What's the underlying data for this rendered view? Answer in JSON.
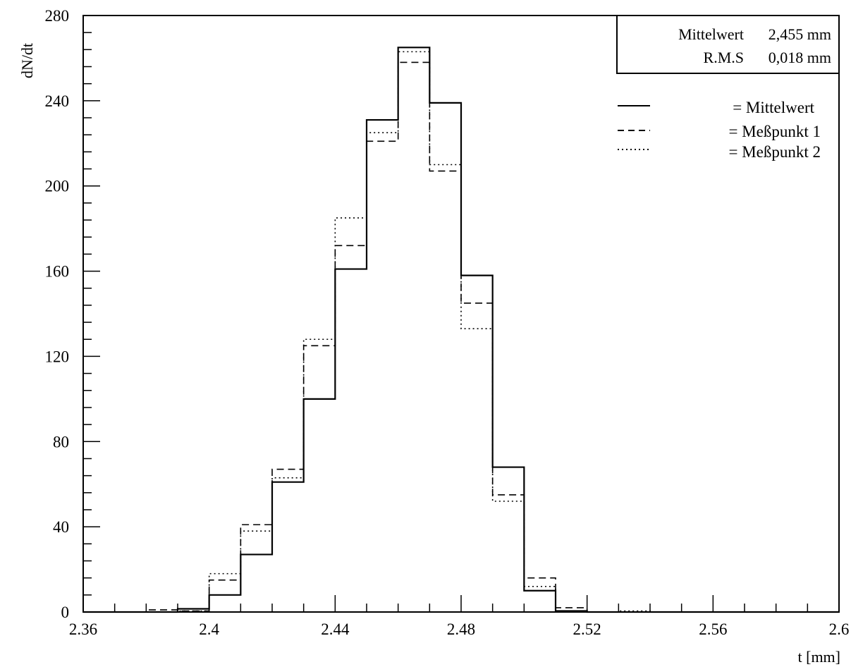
{
  "chart_data": {
    "type": "histogram",
    "title": "",
    "xlabel": "t [mm]",
    "ylabel": "dN/dt",
    "xlim": [
      2.36,
      2.6
    ],
    "ylim": [
      0,
      280
    ],
    "x_ticks": [
      "2.36",
      "2.4",
      "2.44",
      "2.48",
      "2.52",
      "2.56",
      "2.6"
    ],
    "y_ticks": [
      "0",
      "40",
      "80",
      "120",
      "160",
      "200",
      "240",
      "280"
    ],
    "grid": false,
    "bin_edges": [
      2.36,
      2.37,
      2.38,
      2.39,
      2.4,
      2.41,
      2.42,
      2.43,
      2.44,
      2.45,
      2.46,
      2.47,
      2.48,
      2.49,
      2.5,
      2.51,
      2.52,
      2.53,
      2.54,
      2.55,
      2.56,
      2.57,
      2.58,
      2.59,
      2.6
    ],
    "series": [
      {
        "name": "Mittelwert",
        "style": "solid",
        "values": [
          0,
          0,
          0,
          1.5,
          8,
          27,
          61,
          100,
          161,
          231,
          265,
          239,
          158,
          68,
          10,
          0.5,
          0,
          0,
          0,
          0,
          0,
          0,
          0,
          0
        ]
      },
      {
        "name": "Meßpunkt 1",
        "style": "dashed",
        "values": [
          0,
          0,
          1,
          0.5,
          15,
          41,
          67,
          125,
          172,
          221,
          258,
          207,
          145,
          55,
          16,
          2,
          0,
          0,
          0,
          0,
          0,
          0,
          0,
          0
        ]
      },
      {
        "name": "Meßpunkt 2",
        "style": "dotted",
        "values": [
          0,
          0,
          0,
          0.5,
          18,
          38,
          63,
          128,
          185,
          225,
          263,
          210,
          133,
          52,
          12,
          0.5,
          0,
          0.5,
          0,
          0,
          0,
          0,
          0,
          0
        ]
      }
    ],
    "stats": {
      "mean_label": "Mittelwert",
      "mean_value": "2,455 mm",
      "rms_label": "R.M.S",
      "rms_value": "0,018 mm"
    },
    "legend": {
      "placement": "top-right",
      "entries": [
        "= Mittelwert",
        "= Meßpunkt 1",
        "= Meßpunkt 2"
      ]
    }
  }
}
